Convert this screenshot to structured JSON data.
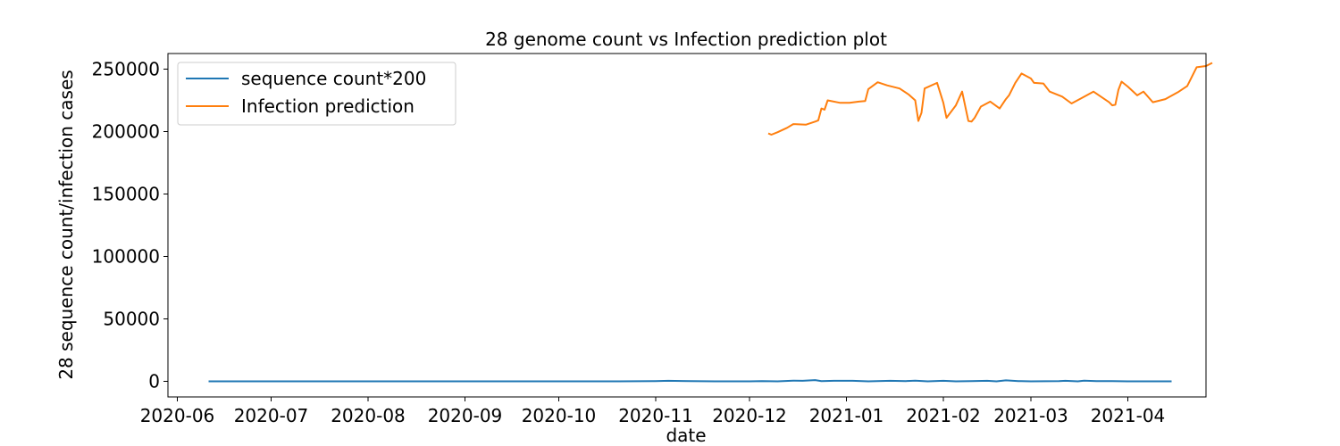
{
  "chart_data": {
    "type": "line",
    "title": "28 genome count vs Infection prediction plot",
    "xlabel": "date",
    "ylabel": "28 sequence count/infection cases",
    "xlim": [
      "2020-05-29",
      "2021-04-26"
    ],
    "ylim": [
      -12500,
      262500
    ],
    "x_ticks": [
      "2020-06",
      "2020-07",
      "2020-08",
      "2020-09",
      "2020-10",
      "2020-11",
      "2020-12",
      "2021-01",
      "2021-02",
      "2021-03",
      "2021-04"
    ],
    "y_ticks": [
      0,
      50000,
      100000,
      150000,
      200000,
      250000
    ],
    "y_tick_labels": [
      "0",
      "50000",
      "100000",
      "150000",
      "200000",
      "250000"
    ],
    "legend_position": "top-left",
    "grid": false,
    "series": [
      {
        "name": "sequence count*200",
        "color": "#1f77b4",
        "points": [
          [
            "2020-06-11",
            0
          ],
          [
            "2020-07-15",
            0
          ],
          [
            "2020-08-20",
            0
          ],
          [
            "2020-09-25",
            0
          ],
          [
            "2020-10-20",
            0
          ],
          [
            "2020-11-01",
            200
          ],
          [
            "2020-11-05",
            400
          ],
          [
            "2020-11-12",
            200
          ],
          [
            "2020-11-20",
            0
          ],
          [
            "2020-12-01",
            0
          ],
          [
            "2020-12-05",
            200
          ],
          [
            "2020-12-10",
            0
          ],
          [
            "2020-12-15",
            600
          ],
          [
            "2020-12-18",
            400
          ],
          [
            "2020-12-22",
            1000
          ],
          [
            "2020-12-24",
            200
          ],
          [
            "2020-12-28",
            400
          ],
          [
            "2021-01-03",
            400
          ],
          [
            "2021-01-08",
            0
          ],
          [
            "2021-01-15",
            400
          ],
          [
            "2021-01-20",
            200
          ],
          [
            "2021-01-23",
            600
          ],
          [
            "2021-01-27",
            0
          ],
          [
            "2021-02-01",
            400
          ],
          [
            "2021-02-05",
            0
          ],
          [
            "2021-02-10",
            200
          ],
          [
            "2021-02-15",
            400
          ],
          [
            "2021-02-18",
            0
          ],
          [
            "2021-02-21",
            800
          ],
          [
            "2021-02-25",
            200
          ],
          [
            "2021-03-01",
            0
          ],
          [
            "2021-03-10",
            200
          ],
          [
            "2021-03-12",
            400
          ],
          [
            "2021-03-16",
            0
          ],
          [
            "2021-03-18",
            600
          ],
          [
            "2021-03-22",
            200
          ],
          [
            "2021-03-27",
            200
          ],
          [
            "2021-04-01",
            0
          ],
          [
            "2021-04-08",
            0
          ],
          [
            "2021-04-15",
            0
          ]
        ]
      },
      {
        "name": "Infection prediction",
        "color": "#ff7f0e",
        "points": [
          [
            "2020-12-07",
            198500
          ],
          [
            "2020-12-08",
            197500
          ],
          [
            "2020-12-10",
            199500
          ],
          [
            "2020-12-13",
            203000
          ],
          [
            "2020-12-15",
            206000
          ],
          [
            "2020-12-19",
            205500
          ],
          [
            "2020-12-22",
            208000
          ],
          [
            "2020-12-23",
            209000
          ],
          [
            "2020-12-24",
            218500
          ],
          [
            "2020-12-25",
            217500
          ],
          [
            "2020-12-26",
            225000
          ],
          [
            "2020-12-30",
            223000
          ],
          [
            "2021-01-02",
            223000
          ],
          [
            "2021-01-05",
            224000
          ],
          [
            "2021-01-07",
            224500
          ],
          [
            "2021-01-08",
            234000
          ],
          [
            "2021-01-11",
            239500
          ],
          [
            "2021-01-14",
            237000
          ],
          [
            "2021-01-18",
            234500
          ],
          [
            "2021-01-21",
            229500
          ],
          [
            "2021-01-23",
            225000
          ],
          [
            "2021-01-24",
            208500
          ],
          [
            "2021-01-25",
            215000
          ],
          [
            "2021-01-26",
            234500
          ],
          [
            "2021-01-30",
            239000
          ],
          [
            "2021-02-01",
            223000
          ],
          [
            "2021-02-02",
            211000
          ],
          [
            "2021-02-05",
            221000
          ],
          [
            "2021-02-07",
            232000
          ],
          [
            "2021-02-09",
            208500
          ],
          [
            "2021-02-10",
            208000
          ],
          [
            "2021-02-11",
            211000
          ],
          [
            "2021-02-13",
            220000
          ],
          [
            "2021-02-16",
            224000
          ],
          [
            "2021-02-19",
            218500
          ],
          [
            "2021-02-21",
            226000
          ],
          [
            "2021-02-22",
            229000
          ],
          [
            "2021-02-24",
            239000
          ],
          [
            "2021-02-26",
            246500
          ],
          [
            "2021-03-01",
            242500
          ],
          [
            "2021-03-02",
            239000
          ],
          [
            "2021-03-05",
            238500
          ],
          [
            "2021-03-07",
            232000
          ],
          [
            "2021-03-11",
            228000
          ],
          [
            "2021-03-14",
            222500
          ],
          [
            "2021-03-17",
            226500
          ],
          [
            "2021-03-21",
            232000
          ],
          [
            "2021-03-26",
            223500
          ],
          [
            "2021-03-27",
            221000
          ],
          [
            "2021-03-28",
            221500
          ],
          [
            "2021-03-29",
            233500
          ],
          [
            "2021-03-30",
            240000
          ],
          [
            "2021-04-01",
            236000
          ],
          [
            "2021-04-04",
            229000
          ],
          [
            "2021-04-06",
            232000
          ],
          [
            "2021-04-09",
            223500
          ],
          [
            "2021-04-13",
            226000
          ],
          [
            "2021-04-17",
            231500
          ],
          [
            "2021-04-20",
            236500
          ],
          [
            "2021-04-23",
            251500
          ],
          [
            "2021-04-26",
            252500
          ],
          [
            "2021-04-28",
            255000
          ]
        ]
      }
    ]
  }
}
